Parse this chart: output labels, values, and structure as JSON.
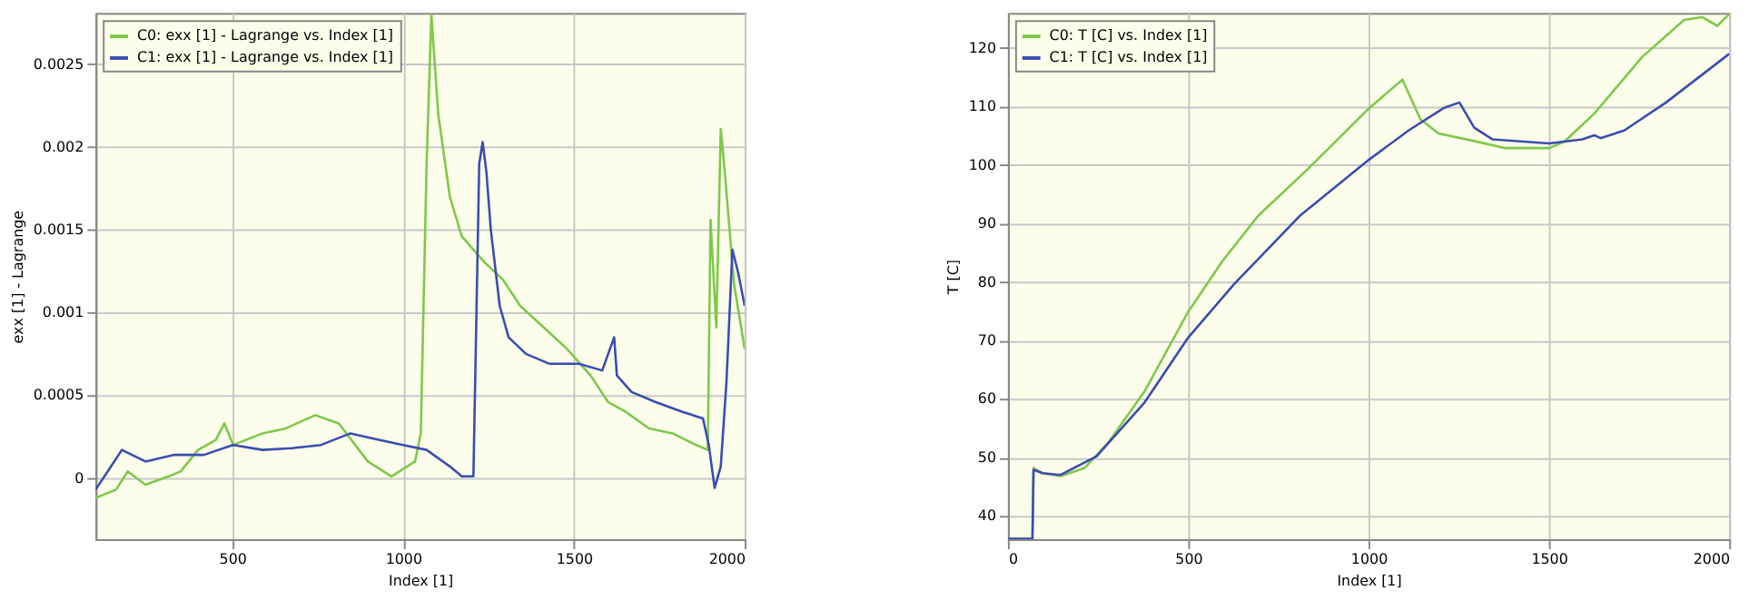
{
  "chart_data": [
    {
      "type": "line",
      "xlabel": "Index [1]",
      "ylabel": "exx [1] - Lagrange",
      "xlim": [
        100,
        2000
      ],
      "ylim": [
        -0.00037,
        0.00281
      ],
      "xticks": [
        500,
        1000,
        1500,
        2000
      ],
      "yticks": [
        0,
        0.0005,
        0.001,
        0.0015,
        0.002,
        0.0025
      ],
      "grid": true,
      "legend": "top left",
      "series": [
        {
          "name": "C0: exx [1] - Lagrange vs. Index [1]",
          "color": "#7dc94a",
          "x": [
            100,
            160,
            194,
            246,
            314,
            349,
            400,
            452,
            477,
            503,
            589,
            657,
            743,
            812,
            897,
            966,
            1035,
            1052,
            1069,
            1083,
            1103,
            1137,
            1172,
            1240,
            1292,
            1343,
            1412,
            1480,
            1549,
            1600,
            1652,
            1720,
            1789,
            1857,
            1892,
            1900,
            1917,
            1930,
            1943,
            1969,
            2000
          ],
          "values": [
            -0.00012,
            -7e-05,
            4e-05,
            -4e-05,
            1e-05,
            4e-05,
            0.00017,
            0.00023,
            0.00033,
            0.0002,
            0.00027,
            0.0003,
            0.00038,
            0.00033,
            0.0001,
            1e-05,
            0.0001,
            0.00027,
            0.0019,
            0.0028,
            0.0022,
            0.0017,
            0.00146,
            0.0013,
            0.0012,
            0.00104,
            0.00091,
            0.00078,
            0.00062,
            0.00046,
            0.0004,
            0.0003,
            0.00027,
            0.0002,
            0.00017,
            0.00156,
            0.00091,
            0.00211,
            0.00182,
            0.00117,
            0.00078
          ]
        },
        {
          "name": "C1: exx [1] - Lagrange vs. Index [1]",
          "color": "#3a4db0",
          "x": [
            100,
            126,
            177,
            246,
            331,
            417,
            503,
            589,
            674,
            760,
            846,
            932,
            1000,
            1069,
            1137,
            1172,
            1206,
            1223,
            1233,
            1244,
            1257,
            1283,
            1309,
            1360,
            1429,
            1515,
            1583,
            1618,
            1626,
            1669,
            1738,
            1818,
            1878,
            1895,
            1912,
            1930,
            1947,
            1964,
            1981,
            2000
          ],
          "values": [
            -7e-05,
            1e-05,
            0.00017,
            0.0001,
            0.00014,
            0.00014,
            0.0002,
            0.00017,
            0.00018,
            0.0002,
            0.00027,
            0.00023,
            0.0002,
            0.00017,
            7e-05,
            1e-05,
            1e-05,
            0.0019,
            0.00203,
            0.00185,
            0.0015,
            0.00104,
            0.00085,
            0.00075,
            0.00069,
            0.00069,
            0.00065,
            0.00085,
            0.00062,
            0.00052,
            0.00046,
            0.0004,
            0.00036,
            0.0002,
            -6e-05,
            7e-05,
            0.00059,
            0.00138,
            0.00124,
            0.00104
          ]
        }
      ]
    },
    {
      "type": "line",
      "xlabel": "Index [1]",
      "ylabel": "T [C]",
      "xlim": [
        0,
        2000
      ],
      "ylim": [
        36,
        126
      ],
      "xticks": [
        0,
        500,
        1000,
        1500,
        2000
      ],
      "yticks": [
        40,
        50,
        60,
        70,
        80,
        90,
        100,
        110,
        120
      ],
      "grid": true,
      "legend": "top left",
      "series": [
        {
          "name": "C0: T [C] vs. Index [1]",
          "color": "#7dc94a",
          "x": [
            0,
            68,
            71,
            96,
            146,
            213,
            279,
            379,
            500,
            595,
            695,
            828,
            1003,
            1094,
            1144,
            1194,
            1293,
            1377,
            1501,
            1543,
            1626,
            1759,
            1875,
            1925,
            1967,
            2000
          ],
          "values": [
            36.1,
            36.1,
            48.2,
            47.3,
            46.8,
            48.2,
            52.6,
            61.3,
            74.9,
            83.6,
            91.4,
            99.1,
            109.8,
            114.6,
            107.8,
            105.4,
            104.1,
            102.9,
            102.9,
            104,
            108.8,
            118.5,
            124.8,
            125.3,
            123.8,
            125.8
          ]
        },
        {
          "name": "C1: T [C] vs. Index [1]",
          "color": "#3a4db0",
          "x": [
            0,
            68,
            71,
            96,
            146,
            246,
            379,
            500,
            628,
            811,
            1003,
            1111,
            1210,
            1252,
            1293,
            1343,
            1501,
            1593,
            1626,
            1643,
            1709,
            1825,
            2000
          ],
          "values": [
            36.1,
            36.1,
            47.9,
            47.3,
            47,
            50.2,
            59.4,
            70.5,
            79.7,
            91.4,
            101,
            105.9,
            109.8,
            110.7,
            106.4,
            104.4,
            103.7,
            104.4,
            105.1,
            104.6,
            105.9,
            110.7,
            119
          ]
        }
      ]
    }
  ]
}
